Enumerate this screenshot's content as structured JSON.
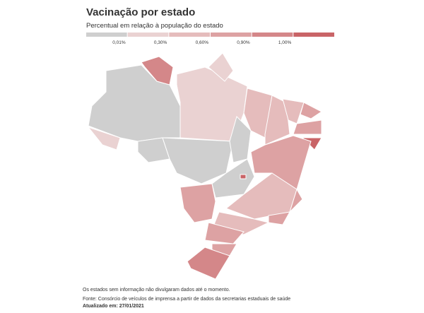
{
  "header": {
    "title": "Vacinação por estado",
    "subtitle": "Percentual em relação à população do estado"
  },
  "legend": {
    "colors": [
      "#cfcfcf",
      "#ead2d2",
      "#e5bcbc",
      "#dda2a3",
      "#d48789",
      "#c96467"
    ],
    "labels": [
      "0,01%",
      "0,30%",
      "0,60%",
      "0,90%",
      "1,00%"
    ]
  },
  "footer": {
    "note": "Os estados sem informação não divulgaram dados até o momento.",
    "source": "Fonte: Consórcio de veículos de imprensa a partir de dados da secretarias estaduais de saúde",
    "updated": "Atualizado em: 27/01/2021"
  }
}
